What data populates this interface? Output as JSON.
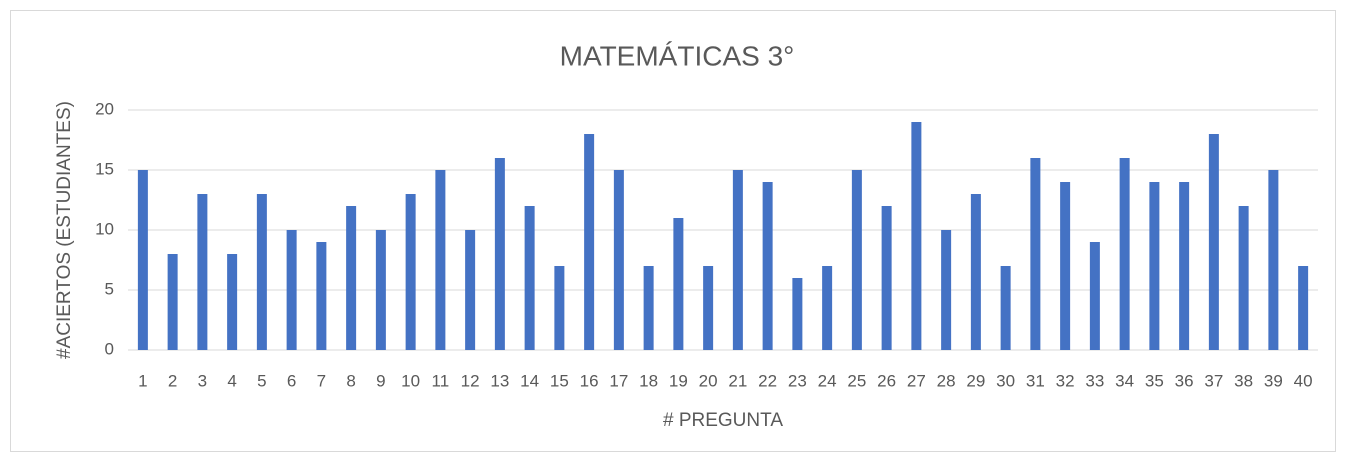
{
  "chart_data": {
    "type": "bar",
    "title": "MATEMÁTICAS 3°",
    "x_label": "# PREGUNTA",
    "y_label": "#ACIERTOS (ESTUDIANTES)",
    "categories": [
      "1",
      "2",
      "3",
      "4",
      "5",
      "6",
      "7",
      "8",
      "9",
      "10",
      "11",
      "12",
      "13",
      "14",
      "15",
      "16",
      "17",
      "18",
      "19",
      "20",
      "21",
      "22",
      "23",
      "24",
      "25",
      "26",
      "27",
      "28",
      "29",
      "30",
      "31",
      "32",
      "33",
      "34",
      "35",
      "36",
      "37",
      "38",
      "39",
      "40"
    ],
    "values": [
      15,
      8,
      13,
      8,
      13,
      10,
      9,
      12,
      10,
      13,
      15,
      10,
      16,
      12,
      7,
      18,
      15,
      7,
      11,
      7,
      15,
      14,
      6,
      7,
      15,
      12,
      19,
      10,
      13,
      7,
      16,
      14,
      9,
      16,
      14,
      14,
      18,
      12,
      15,
      7
    ],
    "color": "#4472c4",
    "ylim": [
      0,
      20
    ],
    "yticks": [
      0,
      5,
      10,
      15,
      20
    ],
    "grid": true
  }
}
